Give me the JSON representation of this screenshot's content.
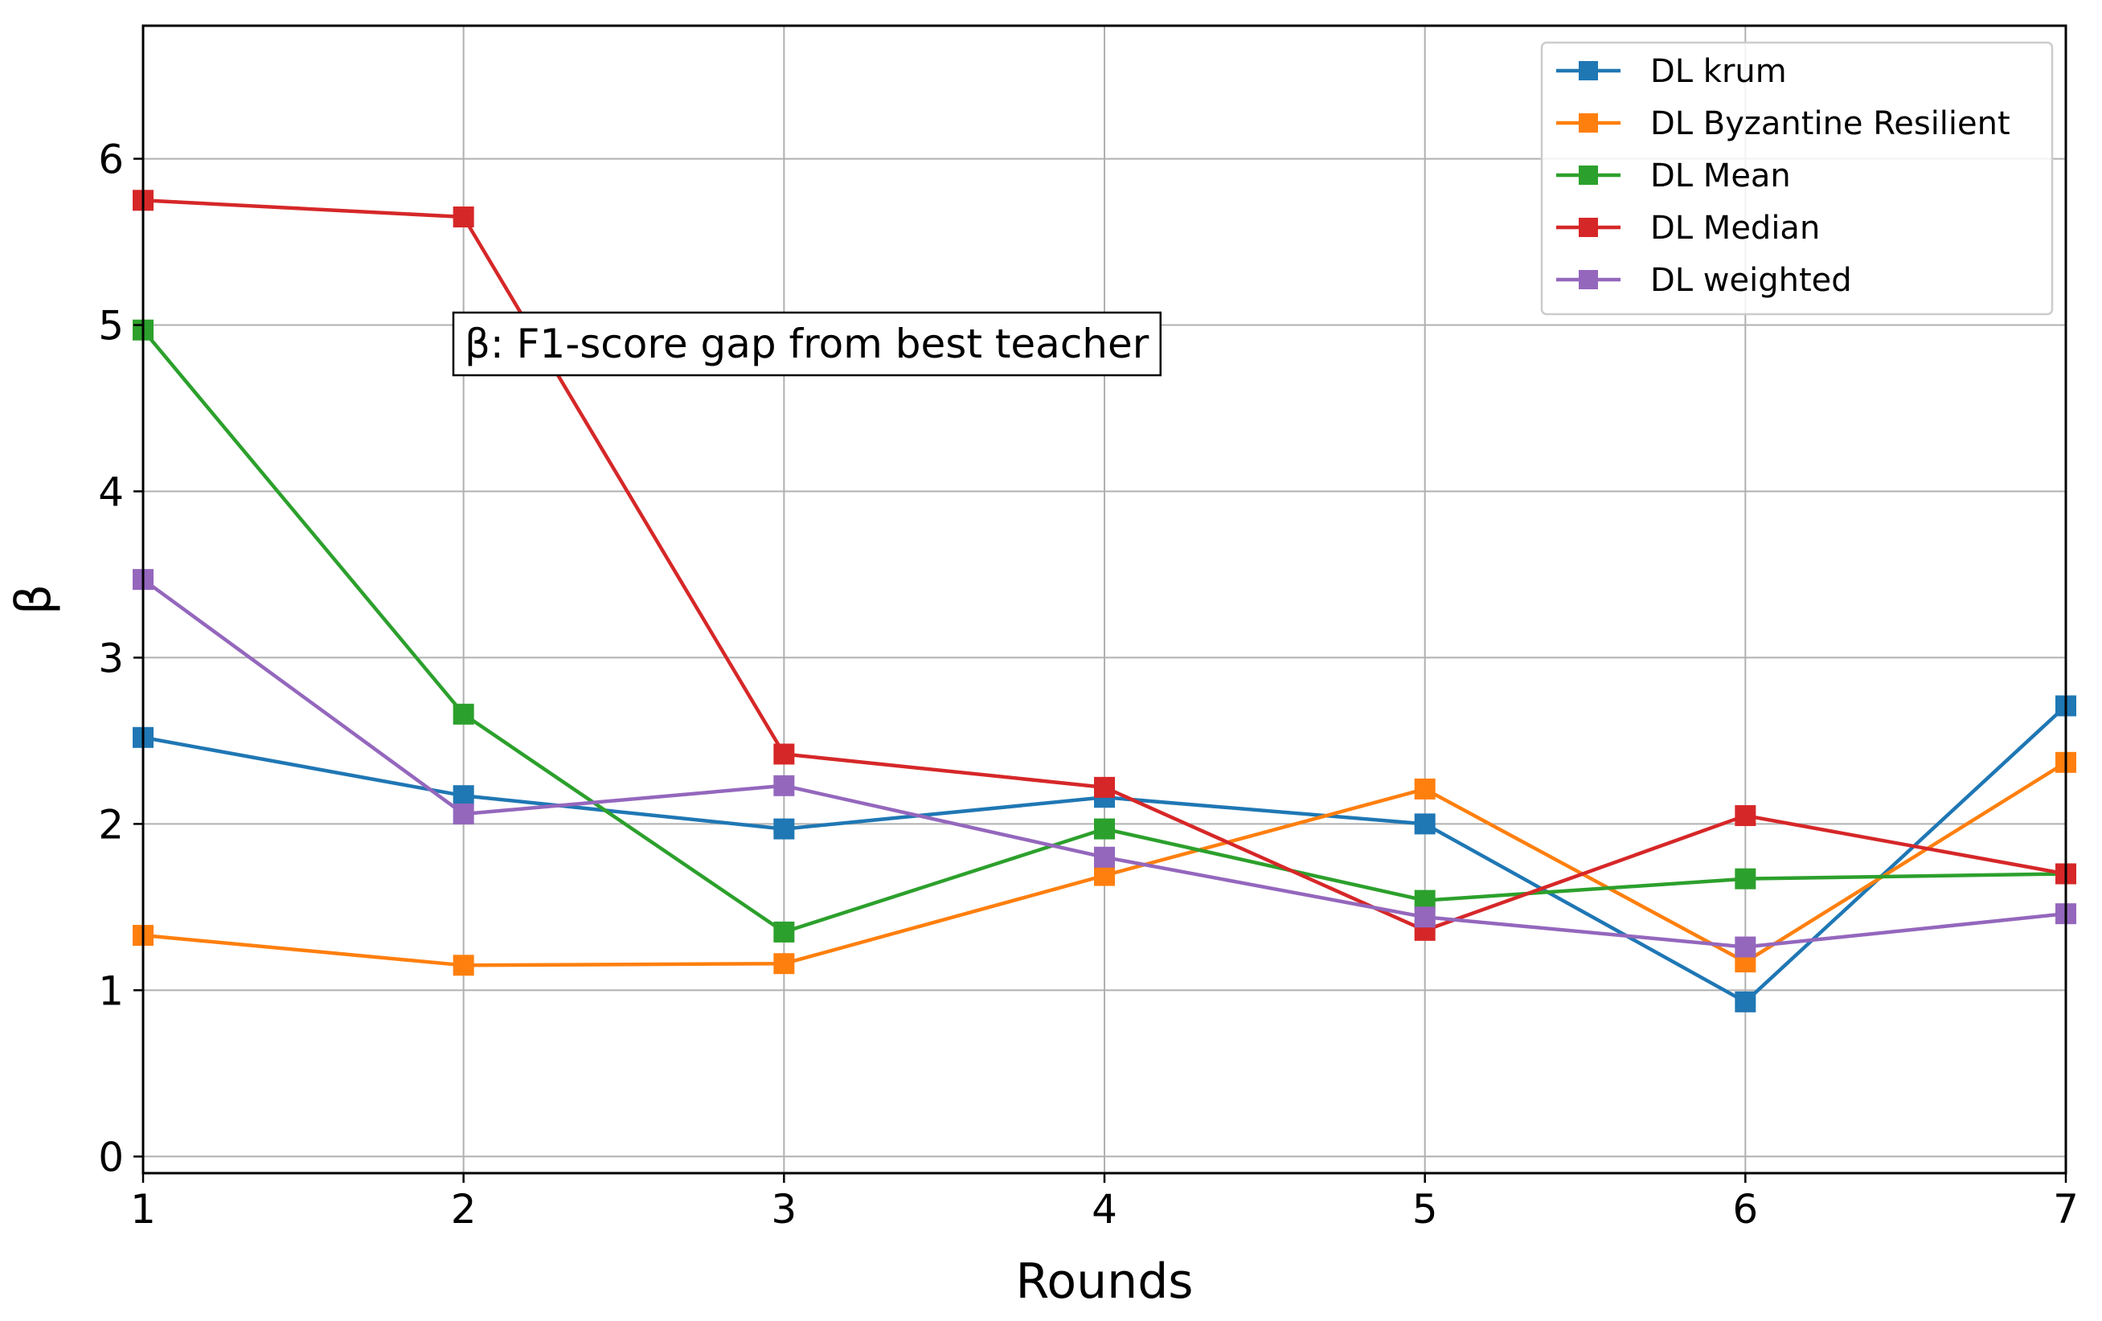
{
  "chart_data": {
    "type": "line",
    "title": "",
    "xlabel": "Rounds",
    "ylabel": "β",
    "x": [
      1,
      2,
      3,
      4,
      5,
      6,
      7
    ],
    "xlim": [
      1,
      7
    ],
    "ylim": [
      -0.1,
      6.8
    ],
    "xticks": [
      "1",
      "2",
      "3",
      "4",
      "5",
      "6",
      "7"
    ],
    "yticks": [
      "0",
      "1",
      "2",
      "3",
      "4",
      "5",
      "6"
    ],
    "grid": true,
    "legend_position": "top-right",
    "marker": "square",
    "annotation": "β: F1-score gap from best teacher",
    "series": [
      {
        "name": "DL krum",
        "color": "#1f77b4",
        "values": [
          2.52,
          2.17,
          1.97,
          2.16,
          2.0,
          0.93,
          2.71
        ]
      },
      {
        "name": "DL Byzantine Resilient",
        "color": "#ff7f0e",
        "values": [
          1.33,
          1.15,
          1.16,
          1.69,
          2.21,
          1.17,
          2.37
        ]
      },
      {
        "name": "DL Mean",
        "color": "#2ca02c",
        "values": [
          4.97,
          2.66,
          1.35,
          1.97,
          1.54,
          1.67,
          1.7
        ]
      },
      {
        "name": "DL Median",
        "color": "#d62728",
        "values": [
          5.75,
          5.65,
          2.42,
          2.22,
          1.36,
          2.05,
          1.7
        ]
      },
      {
        "name": "DL weighted",
        "color": "#9467bd",
        "values": [
          3.47,
          2.06,
          2.23,
          1.8,
          1.44,
          1.26,
          1.46
        ]
      }
    ]
  }
}
